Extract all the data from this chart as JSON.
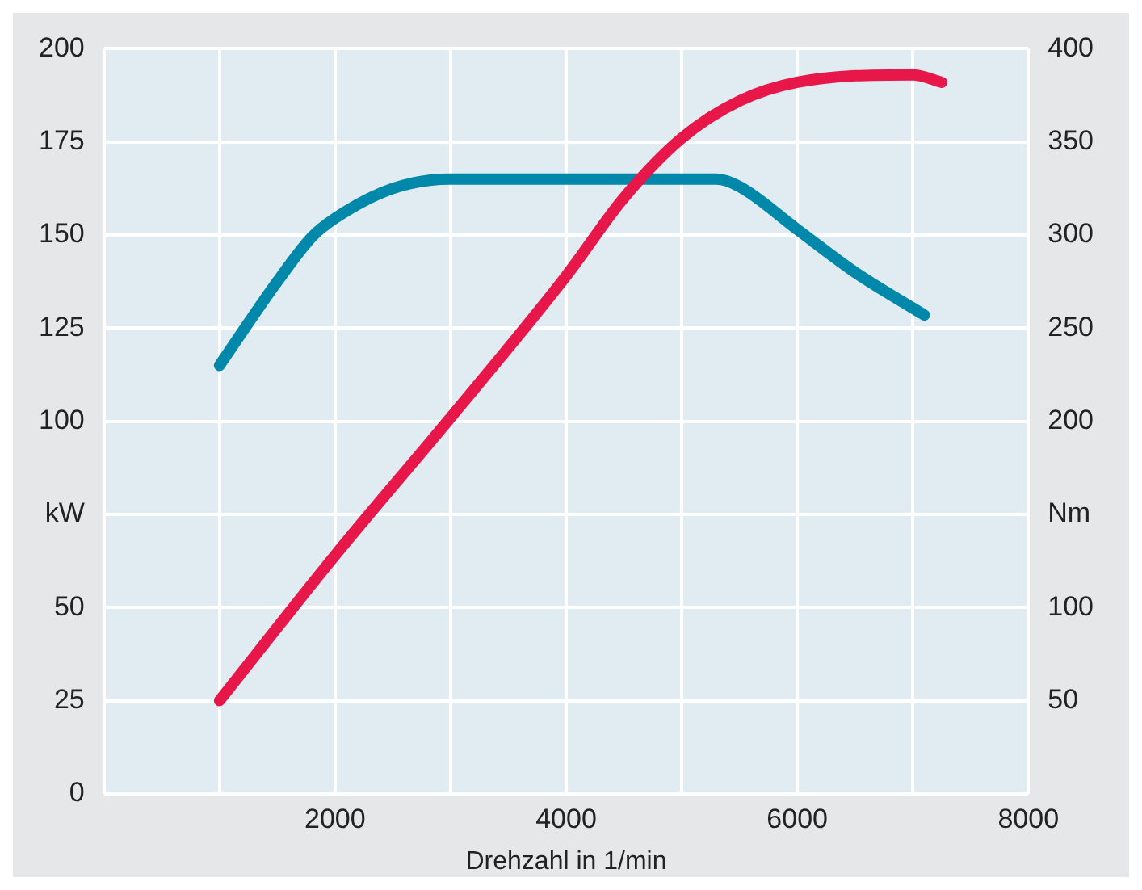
{
  "chart_data": {
    "type": "line",
    "xlabel": "Drehzahl in 1/min",
    "series": [
      {
        "color": "#e8174a",
        "axis": "y",
        "x": [
          1000,
          2000,
          3000,
          4000,
          4500,
          5000,
          5500,
          6000,
          7000,
          7250
        ],
        "values": [
          25,
          64,
          101,
          139,
          160,
          176,
          186,
          191,
          193,
          191
        ]
      },
      {
        "color": "#0088aa",
        "axis": "y2",
        "x": [
          1000,
          1500,
          1800,
          2000,
          2500,
          3000,
          5000,
          5300,
          5500,
          6000,
          6500,
          7100
        ],
        "values": [
          230,
          275,
          299,
          309,
          325,
          330,
          330,
          330,
          326,
          303,
          280,
          257
        ]
      }
    ],
    "xlim": [
      0,
      8000
    ],
    "xticks": [
      {
        "value": 0,
        "label": null
      },
      {
        "value": 1000,
        "label": null
      },
      2000,
      {
        "value": 3000,
        "label": null
      },
      4000,
      {
        "value": 5000,
        "label": null
      },
      6000,
      {
        "value": 7000,
        "label": null
      },
      8000
    ],
    "ylim": [
      0,
      200
    ],
    "yticks": [
      0,
      25,
      50,
      {
        "value": 75,
        "label": "kW"
      },
      100,
      125,
      150,
      175,
      200
    ],
    "y2lim": [
      0,
      400
    ],
    "y2ticks": [
      50,
      100,
      {
        "value": 150,
        "label": "Nm"
      },
      200,
      250,
      300,
      350,
      400
    ],
    "grid": true,
    "legend": false,
    "marker": "none",
    "line_style": "solid"
  }
}
